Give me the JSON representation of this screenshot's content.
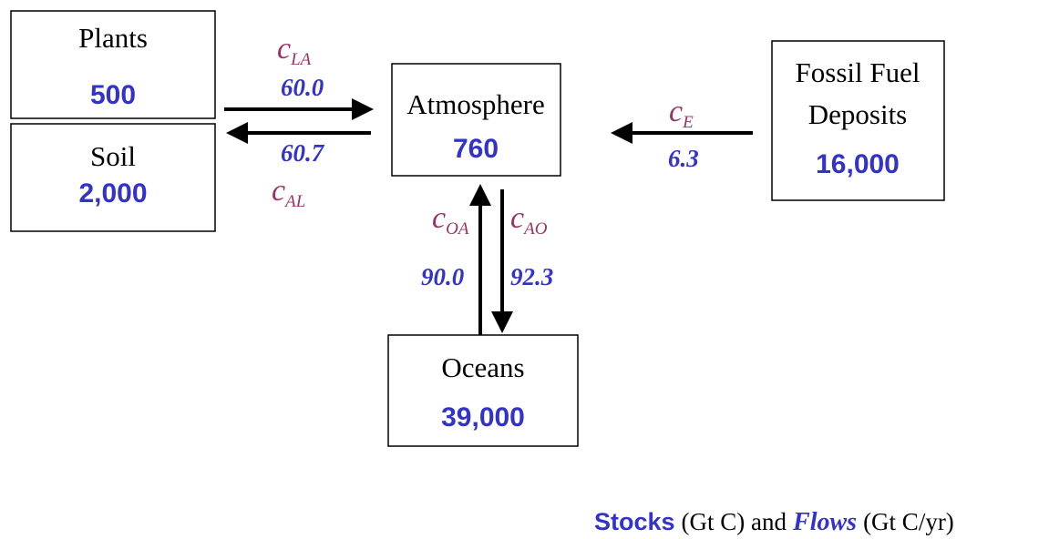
{
  "nodes": [
    {
      "label": [
        "Plants"
      ],
      "stock": "500"
    },
    {
      "label": [
        "Soil"
      ],
      "stock": "2,000"
    },
    {
      "label": [
        "Atmosphere"
      ],
      "stock": "760"
    },
    {
      "label": [
        "Fossil Fuel",
        "Deposits"
      ],
      "stock": "16,000"
    },
    {
      "label": [
        "Oceans"
      ],
      "stock": "39,000"
    }
  ],
  "flows": [
    {
      "symbol": "c",
      "subscript": "LA",
      "value": "60.0"
    },
    {
      "symbol": "c",
      "subscript": "AL",
      "value": "60.7"
    },
    {
      "symbol": "c",
      "subscript": "E",
      "value": "6.3"
    },
    {
      "symbol": "c",
      "subscript": "OA",
      "value": "90.0"
    },
    {
      "symbol": "c",
      "subscript": "AO",
      "value": "92.3"
    }
  ],
  "legend": {
    "stocks": "Stocks",
    "stocks_unit": "(Gt C) and",
    "flows": "Flows",
    "flows_unit": "(Gt C/yr)"
  }
}
